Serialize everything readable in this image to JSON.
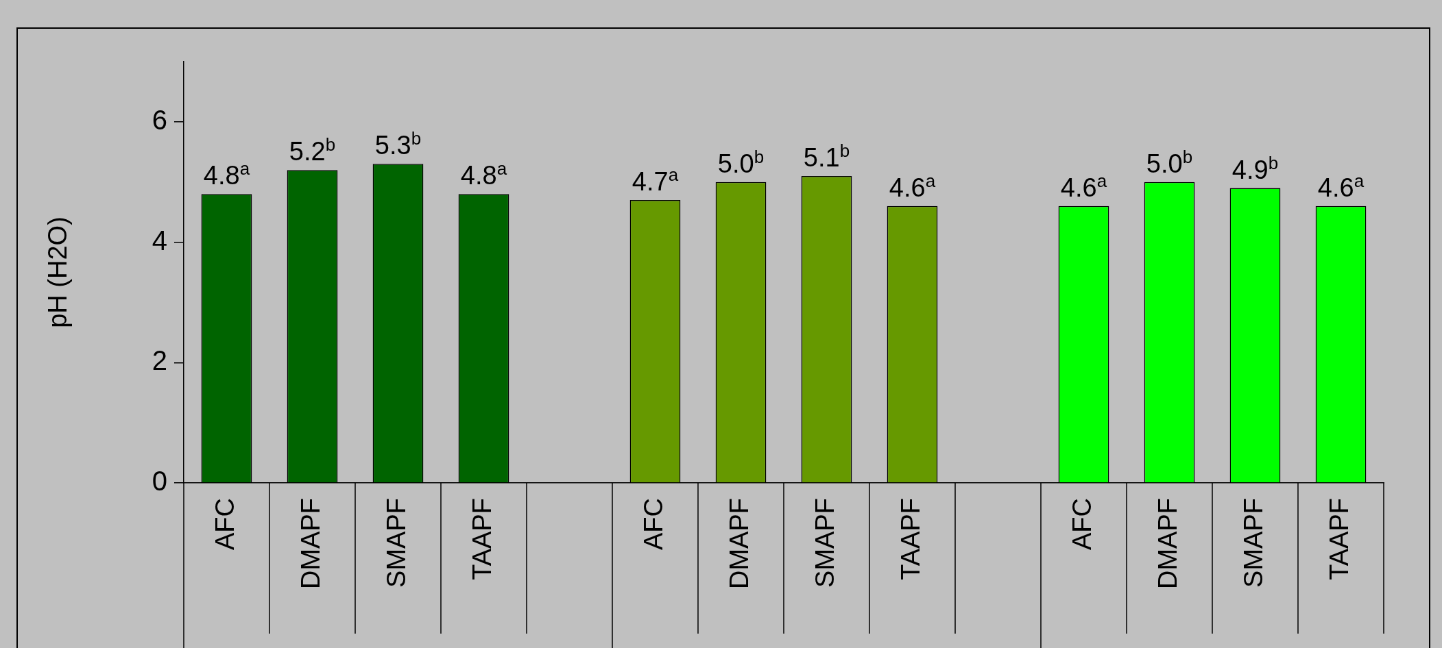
{
  "chart_data": {
    "type": "bar",
    "ylabel": "pH (H2O)",
    "categories": [
      "AFC",
      "DMAPF",
      "SMAPF",
      "TAAPF",
      null,
      "AFC",
      "DMAPF",
      "SMAPF",
      "TAAPF",
      null,
      "AFC",
      "DMAPF",
      "SMAPF",
      "TAAPF"
    ],
    "values": [
      4.8,
      5.2,
      5.3,
      4.8,
      null,
      4.7,
      5.0,
      5.1,
      4.6,
      null,
      4.6,
      5.0,
      4.9,
      4.6
    ],
    "colors": [
      "#006400",
      "#006400",
      "#006400",
      "#006400",
      null,
      "#669900",
      "#669900",
      "#669900",
      "#669900",
      null,
      "#00ff00",
      "#00ff00",
      "#00ff00",
      "#00ff00"
    ],
    "value_labels": [
      "4.8$^{a}$",
      "5.2$^{b}$",
      "5.3$^{b}$",
      "4.8$^{a}$",
      null,
      "4.7$^{a}$",
      "5.0$^{b}$",
      "5.1$^{b}$",
      "4.6$^{a}$",
      null,
      "4.6$^{a}$",
      "5.0$^{b}$",
      "4.9$^{b}$",
      "4.6$^{a}$"
    ],
    "ylim": [
      0,
      7
    ],
    "yticks": [
      0,
      2,
      4,
      6
    ],
    "grid": false,
    "legend": false
  }
}
